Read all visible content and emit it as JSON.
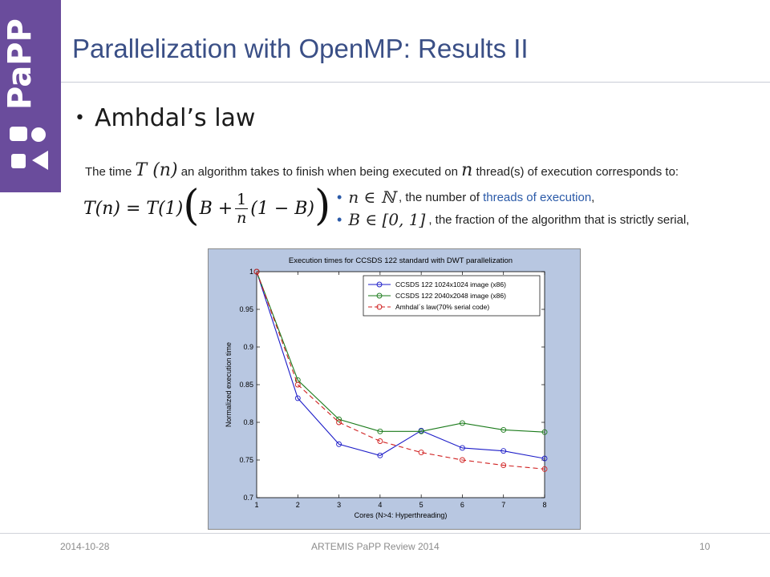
{
  "slide": {
    "title": "Parallelization with OpenMP: Results II",
    "bullet": "Amhdal’s law",
    "logo_text": "PaPP",
    "accent_color": "#6a4c9c",
    "title_color": "#3a4f86"
  },
  "formula": {
    "intro_before": "The time",
    "intro_sym1": "T (n)",
    "intro_mid": "an algorithm takes to finish when being executed on",
    "intro_sym2": "n",
    "intro_after": "thread(s) of execution corresponds to:",
    "lhs": "T(n) = T(1)",
    "term_b": "B +",
    "frac_num": "1",
    "frac_den": "n",
    "term_tail": "(1 − B)",
    "def1_sym": "n ∈ ℕ",
    "def1_text_plain": ", the number of",
    "def1_text_link": "threads of execution",
    "def1_text_end": ",",
    "def2_sym": "B ∈ [0, 1]",
    "def2_text": ", the fraction of the algorithm that is strictly serial,"
  },
  "chart_data": {
    "type": "line",
    "title": "Execution times for CCSDS 122 standard with DWT parallelization",
    "xlabel": "Cores (N>4: Hyperthreading)",
    "ylabel": "Normalized execution time",
    "x": [
      1,
      2,
      3,
      4,
      5,
      6,
      7,
      8
    ],
    "xlim": [
      1,
      8
    ],
    "ylim": [
      0.7,
      1
    ],
    "xticks": [
      "1",
      "2",
      "3",
      "4",
      "5",
      "6",
      "7",
      "8"
    ],
    "yticks": [
      "0.7",
      "0.75",
      "0.8",
      "0.85",
      "0.9",
      "0.95",
      "1"
    ],
    "grid": false,
    "legend_position": "top-right",
    "series": [
      {
        "name": "CCSDS 122 1024x1024 image (x86)",
        "color": "#1c1cc8",
        "style": "solid",
        "values": [
          1.0,
          0.832,
          0.771,
          0.756,
          0.789,
          0.766,
          0.762,
          0.752
        ]
      },
      {
        "name": "CCSDS 122 2040x2048 image (x86)",
        "color": "#1a7a1a",
        "style": "solid",
        "values": [
          1.0,
          0.856,
          0.804,
          0.788,
          0.788,
          0.799,
          0.79,
          0.787
        ]
      },
      {
        "name": "Amhdal´s law(70% serial code)",
        "color": "#d02020",
        "style": "dashed",
        "values": [
          1.0,
          0.85,
          0.8,
          0.775,
          0.76,
          0.75,
          0.743,
          0.738
        ]
      }
    ]
  },
  "footer": {
    "date": "2014-10-28",
    "center": "ARTEMIS PaPP Review 2014",
    "page": "10"
  }
}
